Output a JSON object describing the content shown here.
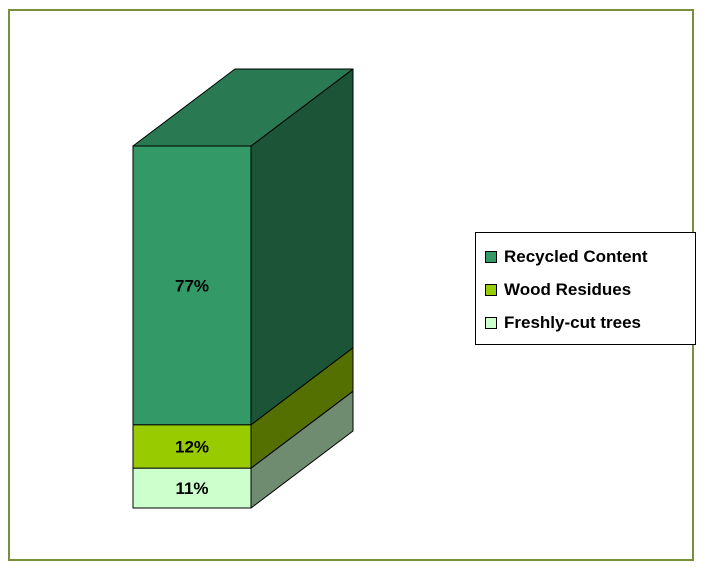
{
  "chart_data": {
    "type": "bar",
    "stacked": true,
    "three_d": true,
    "title": "",
    "xlabel": "",
    "ylabel": "",
    "ylim": [
      0,
      100
    ],
    "grid": false,
    "legend_position": "right",
    "series": [
      {
        "name": "Freshly-cut trees",
        "value": 11,
        "label": "11%",
        "color": "#ccffcc"
      },
      {
        "name": "Wood Residues",
        "value": 12,
        "label": "12%",
        "color": "#99cc00"
      },
      {
        "name": "Recycled Content",
        "value": 77,
        "label": "77%",
        "color": "#339966"
      }
    ]
  }
}
